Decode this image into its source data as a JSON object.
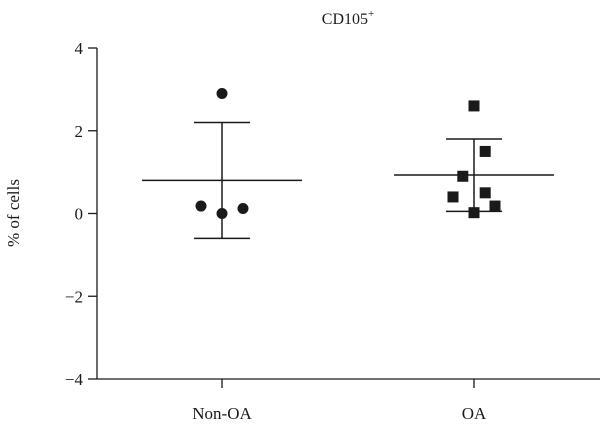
{
  "chart_data": {
    "type": "scatter",
    "title": "CD105",
    "title_superscript": "+",
    "xlabel": "",
    "ylabel": "% of cells",
    "ylim": [
      -4,
      4
    ],
    "yticks": [
      {
        "value": -4,
        "label": "−4"
      },
      {
        "value": -2,
        "label": "−2"
      },
      {
        "value": 0,
        "label": "0"
      },
      {
        "value": 2,
        "label": "2"
      },
      {
        "value": 4,
        "label": "4"
      }
    ],
    "categories": [
      "Non-OA",
      "OA"
    ],
    "grid": false,
    "series": [
      {
        "category": "Non-OA",
        "marker": "circle",
        "points": [
          {
            "dx": 0,
            "y": 2.9
          },
          {
            "dx": -0.15,
            "y": 0.18
          },
          {
            "dx": 0,
            "y": 0.0
          },
          {
            "dx": 0.15,
            "y": 0.12
          }
        ],
        "mean": 0.8,
        "sd_upper": 2.2,
        "sd_lower": -0.6
      },
      {
        "category": "OA",
        "marker": "square",
        "points": [
          {
            "dx": 0,
            "y": 2.6
          },
          {
            "dx": 0.08,
            "y": 1.5
          },
          {
            "dx": -0.08,
            "y": 0.9
          },
          {
            "dx": -0.15,
            "y": 0.4
          },
          {
            "dx": 0.08,
            "y": 0.5
          },
          {
            "dx": 0.15,
            "y": 0.18
          },
          {
            "dx": 0,
            "y": 0.02
          }
        ],
        "mean": 0.93,
        "sd_upper": 1.8,
        "sd_lower": 0.05
      }
    ],
    "colors": {
      "marker": "#1a1a1a",
      "axis": "#1a1a1a"
    }
  }
}
